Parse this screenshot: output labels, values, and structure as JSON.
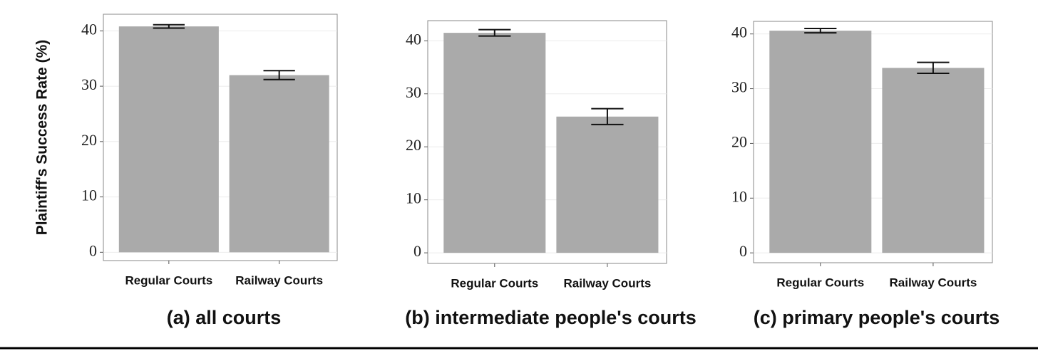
{
  "chart_data": [
    {
      "type": "bar",
      "title": "(a) all courts",
      "ylabel": "Plaintiff's Success Rate (%)",
      "categories": [
        "Regular Courts",
        "Railway Courts"
      ],
      "values": [
        40.8,
        32.0
      ],
      "errors": [
        0.3,
        0.8
      ],
      "color": "#aaaaaa",
      "ylim": [
        -1.5,
        43
      ],
      "yticks": [
        0,
        10,
        20,
        30,
        40
      ],
      "grid": true
    },
    {
      "type": "bar",
      "title": "(b) intermediate people's courts",
      "categories": [
        "Regular Courts",
        "Railway Courts"
      ],
      "values": [
        41.5,
        25.7
      ],
      "errors": [
        0.6,
        1.5
      ],
      "color": "#aaaaaa",
      "ylim": [
        -2,
        43.8
      ],
      "yticks": [
        0,
        10,
        20,
        30,
        40
      ],
      "grid": true
    },
    {
      "type": "bar",
      "title": "(c) primary people's courts",
      "categories": [
        "Regular Courts",
        "Railway Courts"
      ],
      "values": [
        40.6,
        33.8
      ],
      "errors": [
        0.4,
        1.0
      ],
      "color": "#aaaaaa",
      "ylim": [
        -1.8,
        42.3
      ],
      "yticks": [
        0,
        10,
        20,
        30,
        40
      ],
      "grid": true
    }
  ]
}
